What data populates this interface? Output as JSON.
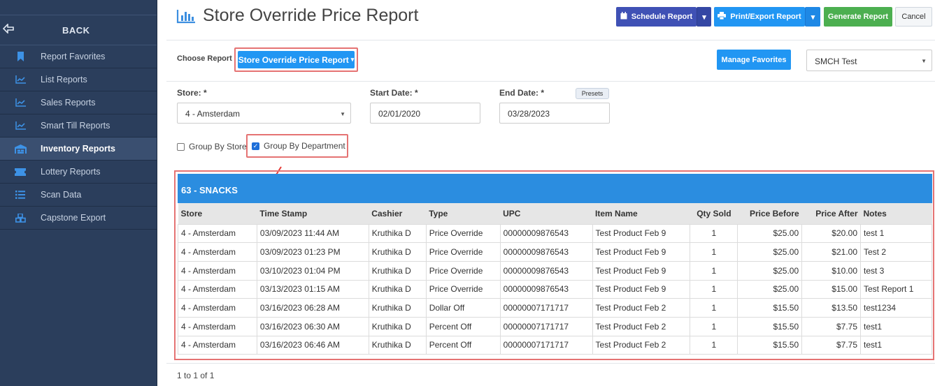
{
  "sidebar": {
    "back_label": "BACK",
    "items": [
      {
        "label": "Report Favorites",
        "icon": "bookmark-icon",
        "active": false
      },
      {
        "label": "List Reports",
        "icon": "line-chart-icon",
        "active": false
      },
      {
        "label": "Sales Reports",
        "icon": "line-chart-icon",
        "active": false
      },
      {
        "label": "Smart Till Reports",
        "icon": "line-chart-icon",
        "active": false
      },
      {
        "label": "Inventory Reports",
        "icon": "warehouse-icon",
        "active": true
      },
      {
        "label": "Lottery Reports",
        "icon": "ticket-icon",
        "active": false
      },
      {
        "label": "Scan Data",
        "icon": "list-icon",
        "active": false
      },
      {
        "label": "Capstone Export",
        "icon": "cubes-icon",
        "active": false
      }
    ]
  },
  "header": {
    "title": "Store Override Price Report",
    "schedule_label": "Schedule Report",
    "print_label": "Print/Export Report",
    "generate_label": "Generate Report",
    "cancel_label": "Cancel"
  },
  "chooser": {
    "label": "Choose Report",
    "selected_report": "Store Override Price Report",
    "manage_favorites": "Manage Favorites",
    "store_group": "SMCH Test"
  },
  "filters": {
    "store_label": "Store: *",
    "store_value": "4 - Amsterdam",
    "start_label": "Start Date: *",
    "start_value": "02/01/2020",
    "end_label": "End Date: *",
    "end_value": "03/28/2023",
    "presets_label": "Presets",
    "group_by_store": "Group By Store",
    "group_by_department": "Group By Department"
  },
  "report": {
    "group_title": "63 - SNACKS",
    "columns": [
      "Store",
      "Time Stamp",
      "Cashier",
      "Type",
      "UPC",
      "Item Name",
      "Qty Sold",
      "Price Before",
      "Price After",
      "Notes"
    ],
    "rows": [
      [
        "4 - Amsterdam",
        "03/09/2023 11:44 AM",
        "Kruthika D",
        "Price Override",
        "00000009876543",
        "Test Product Feb 9",
        "1",
        "$25.00",
        "$20.00",
        "test 1"
      ],
      [
        "4 - Amsterdam",
        "03/09/2023 01:23 PM",
        "Kruthika D",
        "Price Override",
        "00000009876543",
        "Test Product Feb 9",
        "1",
        "$25.00",
        "$21.00",
        "Test 2"
      ],
      [
        "4 - Amsterdam",
        "03/10/2023 01:04 PM",
        "Kruthika D",
        "Price Override",
        "00000009876543",
        "Test Product Feb 9",
        "1",
        "$25.00",
        "$10.00",
        "test 3"
      ],
      [
        "4 - Amsterdam",
        "03/13/2023 01:15 AM",
        "Kruthika D",
        "Price Override",
        "00000009876543",
        "Test Product Feb 9",
        "1",
        "$25.00",
        "$15.00",
        "Test Report 1"
      ],
      [
        "4 - Amsterdam",
        "03/16/2023 06:28 AM",
        "Kruthika D",
        "Dollar Off",
        "00000007171717",
        "Test Product Feb 2",
        "1",
        "$15.50",
        "$13.50",
        "test1234"
      ],
      [
        "4 - Amsterdam",
        "03/16/2023 06:30 AM",
        "Kruthika D",
        "Percent Off",
        "00000007171717",
        "Test Product Feb 2",
        "1",
        "$15.50",
        "$7.75",
        "test1"
      ],
      [
        "4 - Amsterdam",
        "03/16/2023 06:46 AM",
        "Kruthika D",
        "Percent Off",
        "00000007171717",
        "Test Product Feb 2",
        "1",
        "$15.50",
        "$7.75",
        "test1"
      ]
    ],
    "pager": "1 to 1 of 1"
  },
  "colors": {
    "sidebar_bg": "#2b3e5c",
    "accent_blue": "#2196f3",
    "indigo": "#3f51b5",
    "green": "#4caf50",
    "highlight_red": "#e57373"
  }
}
